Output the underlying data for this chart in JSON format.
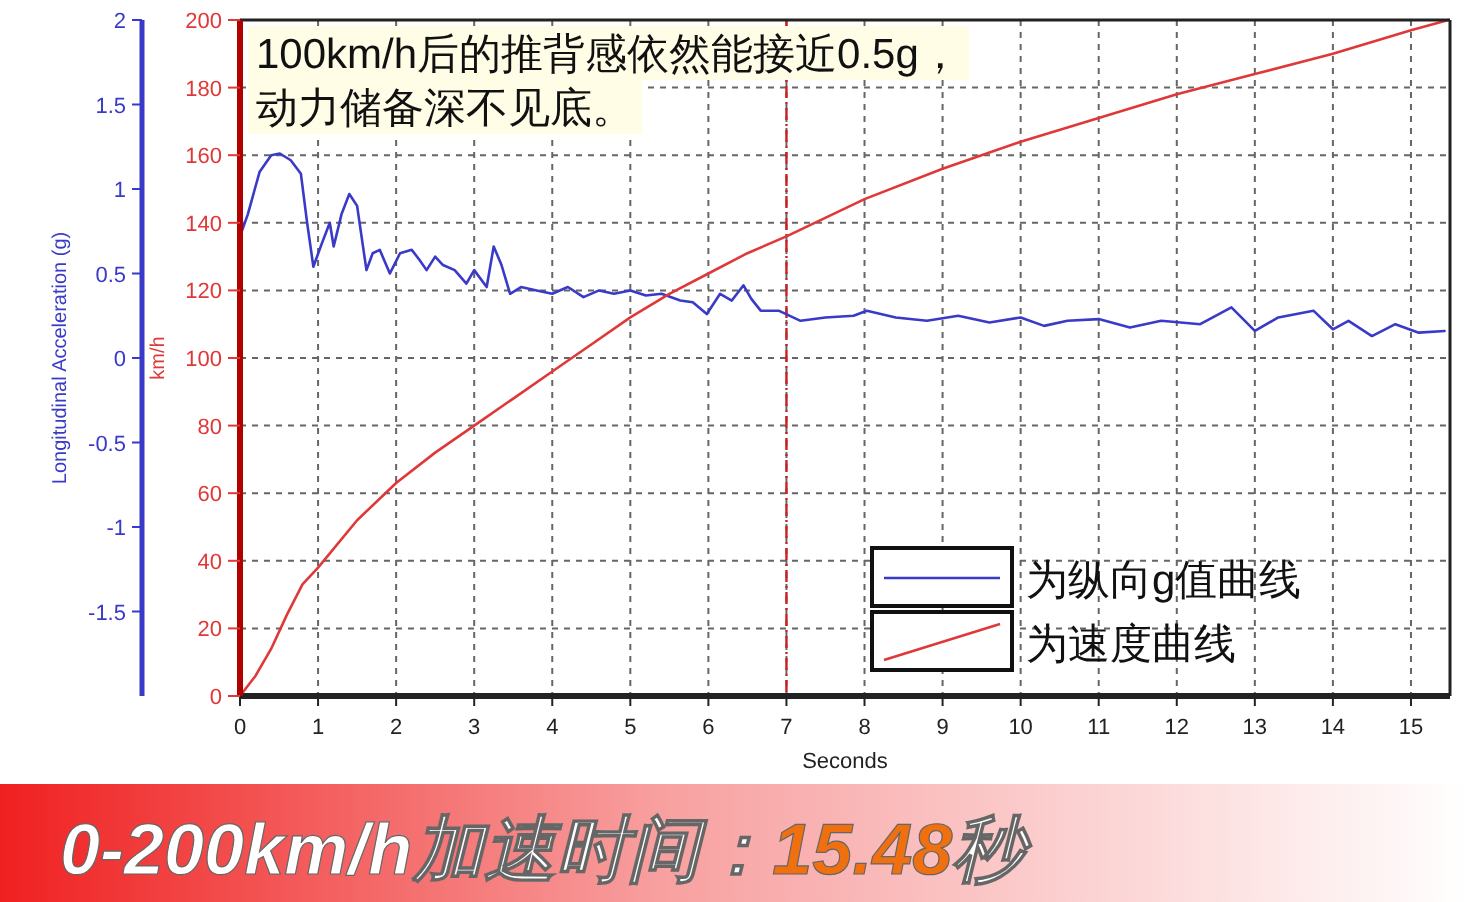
{
  "chart_data": {
    "type": "line",
    "title": "0-200km/h加速时间：15.48秒",
    "xlabel": "Seconds",
    "ylabel": "km/h",
    "y2label": "Longitudinal Acceleration (g)",
    "annotations": [
      "100km/h后的推背感依然能接近0.5g，",
      "动力储备深不见底。"
    ],
    "xlim": [
      0,
      15.5
    ],
    "xticks": [
      0,
      1,
      2,
      3,
      4,
      5,
      6,
      7,
      8,
      9,
      10,
      11,
      12,
      13,
      14,
      15
    ],
    "ylim": [
      0,
      200
    ],
    "yticks": [
      0,
      20,
      40,
      60,
      80,
      100,
      120,
      140,
      160,
      180,
      200
    ],
    "y2lim": [
      -2,
      2
    ],
    "y2ticks": [
      -1.5,
      -1,
      -0.5,
      0,
      0.5,
      1,
      1.5,
      2
    ],
    "grid": true,
    "legend": "bottom right",
    "line_style": "solid",
    "ref_lines": [
      {
        "axis": "x",
        "value": 7,
        "color": "#cc2020",
        "line_style": "dashed"
      }
    ],
    "series": [
      {
        "name": "为纵向g值曲线",
        "color": "#3a3ac8",
        "axis": "y2",
        "x": [
          0,
          0.1,
          0.25,
          0.4,
          0.51,
          0.65,
          0.78,
          0.86,
          0.94,
          1.05,
          1.15,
          1.2,
          1.3,
          1.4,
          1.5,
          1.62,
          1.7,
          1.79,
          1.92,
          2.05,
          2.2,
          2.3,
          2.39,
          2.5,
          2.6,
          2.75,
          2.9,
          3.0,
          3.16,
          3.25,
          3.35,
          3.46,
          3.6,
          3.8,
          4.0,
          4.2,
          4.4,
          4.6,
          4.79,
          5.0,
          5.2,
          5.4,
          5.64,
          5.8,
          5.98,
          6.15,
          6.3,
          6.45,
          6.55,
          6.67,
          6.9,
          7.18,
          7.5,
          7.86,
          8.03,
          8.4,
          8.8,
          9.2,
          9.6,
          10.0,
          10.3,
          10.6,
          11.0,
          11.4,
          11.8,
          12.3,
          12.7,
          13.0,
          13.3,
          13.75,
          14.0,
          14.2,
          14.5,
          14.8,
          15.1,
          15.43
        ],
        "values": [
          0.72,
          0.85,
          1.1,
          1.2,
          1.21,
          1.17,
          1.09,
          0.8,
          0.54,
          0.68,
          0.8,
          0.66,
          0.85,
          0.97,
          0.9,
          0.52,
          0.62,
          0.64,
          0.5,
          0.62,
          0.64,
          0.58,
          0.52,
          0.6,
          0.55,
          0.52,
          0.44,
          0.52,
          0.42,
          0.66,
          0.55,
          0.38,
          0.42,
          0.4,
          0.38,
          0.42,
          0.36,
          0.4,
          0.38,
          0.4,
          0.37,
          0.38,
          0.34,
          0.33,
          0.26,
          0.38,
          0.34,
          0.43,
          0.35,
          0.28,
          0.28,
          0.22,
          0.24,
          0.25,
          0.28,
          0.24,
          0.22,
          0.25,
          0.21,
          0.24,
          0.19,
          0.22,
          0.23,
          0.18,
          0.22,
          0.2,
          0.3,
          0.16,
          0.24,
          0.28,
          0.17,
          0.22,
          0.13,
          0.2,
          0.15,
          0.16
        ]
      },
      {
        "name": "为速度曲线",
        "color": "#e03838",
        "x": [
          0,
          0.2,
          0.4,
          0.6,
          0.8,
          1.0,
          1.5,
          2.0,
          2.5,
          3.0,
          3.5,
          4.0,
          4.5,
          5.0,
          5.5,
          6.0,
          6.5,
          7.0,
          8.0,
          9.0,
          10,
          11,
          12,
          13,
          14,
          15,
          15.48
        ],
        "values": [
          0,
          6,
          14,
          24,
          33,
          38,
          52,
          63,
          72,
          80,
          88,
          96,
          104,
          112,
          119,
          125,
          131,
          136,
          147,
          156,
          164,
          171,
          178,
          184,
          190,
          197,
          200
        ]
      }
    ]
  }
}
